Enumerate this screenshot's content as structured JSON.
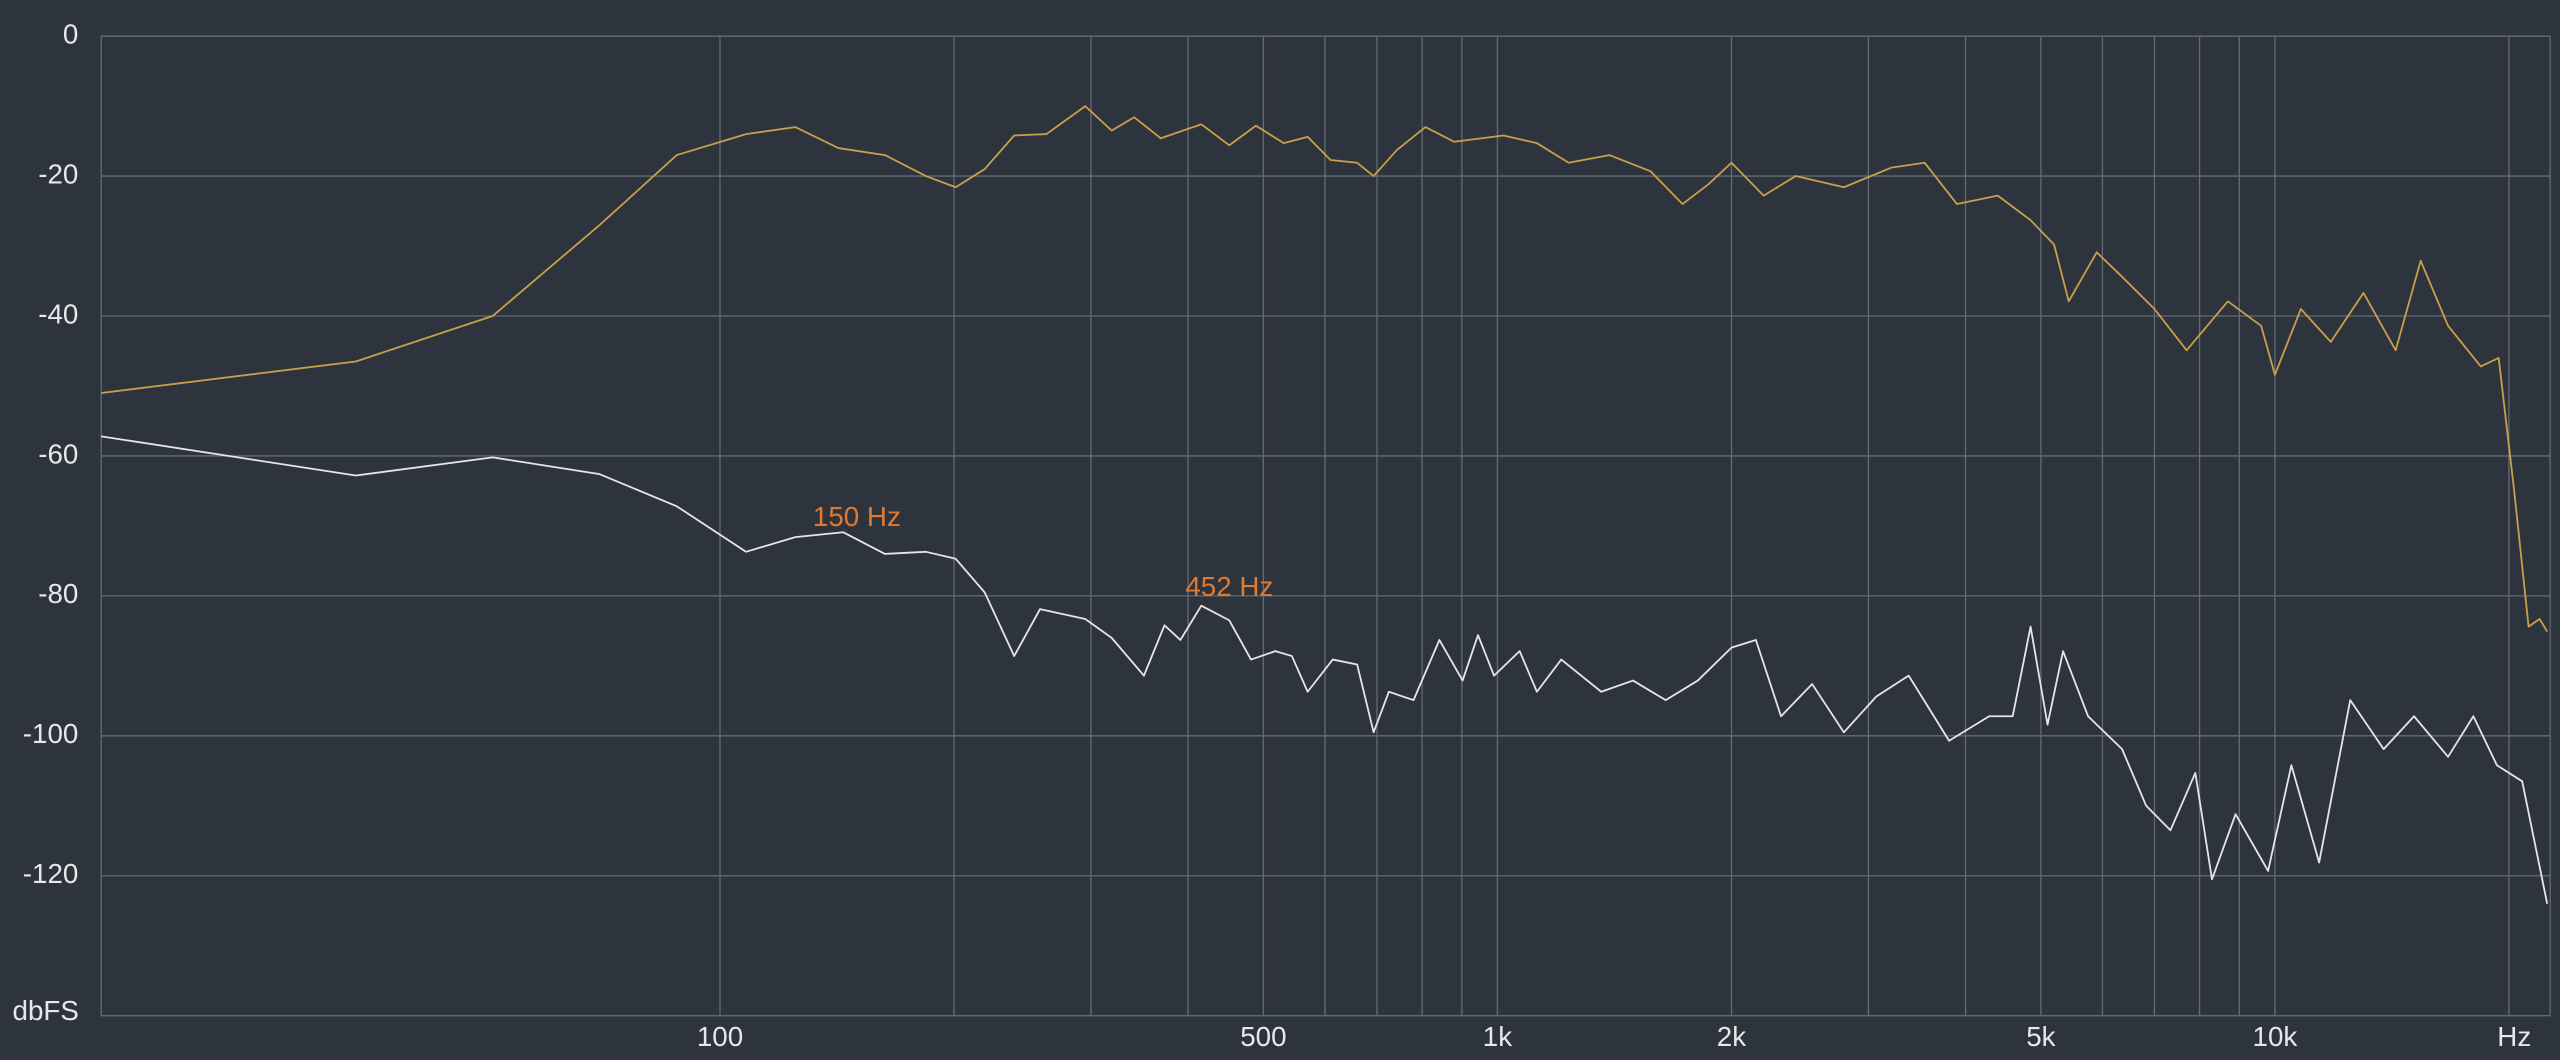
{
  "chart_data": {
    "type": "line",
    "log_x": true,
    "grid": true,
    "x_unit_label": "Hz",
    "y_unit_label": "dbFS",
    "xlim": [
      16,
      22600
    ],
    "ylim": [
      -140,
      0
    ],
    "xticks": [
      100,
      500,
      {
        "value": 1000,
        "label": "1k"
      },
      {
        "value": 2000,
        "label": "2k"
      },
      {
        "value": 5000,
        "label": "5k"
      },
      {
        "value": 10000,
        "label": "10k"
      }
    ],
    "xminor": [
      200,
      300,
      400,
      600,
      700,
      800,
      900,
      3000,
      4000,
      6000,
      7000,
      8000,
      9000,
      20000
    ],
    "yticks": [
      0,
      -20,
      -40,
      -60,
      -80,
      -100,
      -120
    ],
    "series": [
      {
        "color": "#c9a04a",
        "x": [
          16,
          34,
          51,
          70,
          88,
          108,
          125,
          142,
          163,
          184,
          201,
          219,
          239,
          263,
          295,
          319,
          341,
          369,
          416,
          452,
          489,
          531,
          570,
          610,
          660,
          693,
          742,
          808,
          880,
          1018,
          1124,
          1235,
          1393,
          1573,
          1730,
          1867,
          2000,
          2200,
          2419,
          2790,
          3210,
          3544,
          3900,
          4400,
          4850,
          5200,
          5430,
          5900,
          6360,
          7000,
          7700,
          8700,
          9600,
          10000,
          10800,
          11800,
          13000,
          14300,
          15400,
          16700,
          18400,
          19400,
          20300,
          21200,
          21900,
          22400
        ],
        "values": [
          -51,
          -46.5,
          -40,
          -27,
          -17,
          -14,
          -13,
          -16,
          -17,
          -20,
          -21.6,
          -19,
          -14.2,
          -14,
          -10,
          -13.5,
          -11.6,
          -14.6,
          -12.6,
          -15.6,
          -12.8,
          -15.3,
          -14.4,
          -17.7,
          -18.1,
          -20,
          -16.3,
          -13,
          -15.1,
          -14.2,
          -15.3,
          -18.1,
          -17,
          -19.3,
          -24,
          -21.2,
          -18.1,
          -22.8,
          -20,
          -21.6,
          -18.8,
          -18.1,
          -24,
          -22.8,
          -26.3,
          -29.8,
          -37.9,
          -30.9,
          -34.4,
          -39,
          -44.9,
          -37.9,
          -41.4,
          -48.4,
          -39,
          -43.7,
          -36.7,
          -44.9,
          -32.1,
          -41.4,
          -47.2,
          -46,
          -64.7,
          -84.4,
          -83.3,
          -85.1
        ]
      },
      {
        "color": "#e6e6e6",
        "x": [
          16,
          34,
          51,
          70,
          88,
          108,
          125,
          144,
          163,
          184,
          201,
          219,
          239,
          258,
          295,
          319,
          351,
          373,
          391,
          416,
          452,
          482,
          518,
          544,
          570,
          614,
          660,
          693,
          725,
          780,
          842,
          902,
          944,
          990,
          1068,
          1124,
          1208,
          1360,
          1494,
          1646,
          1810,
          2000,
          2150,
          2316,
          2540,
          2790,
          3070,
          3380,
          3810,
          4290,
          4600,
          4850,
          5100,
          5340,
          5750,
          6360,
          6830,
          7340,
          7900,
          8300,
          8900,
          9800,
          10500,
          11400,
          12500,
          13800,
          15100,
          16700,
          18000,
          19300,
          20800,
          22400
        ],
        "values": [
          -57.2,
          -62.8,
          -60.2,
          -62.6,
          -67.2,
          -73.7,
          -71.6,
          -70.9,
          -74,
          -73.7,
          -74.7,
          -79.5,
          -88.6,
          -81.9,
          -83.3,
          -86,
          -91.4,
          -84.2,
          -86.3,
          -81.4,
          -83.5,
          -89.1,
          -87.9,
          -88.6,
          -93.7,
          -89.1,
          -89.8,
          -99.5,
          -93.7,
          -94.9,
          -86.3,
          -92.1,
          -85.6,
          -91.4,
          -87.9,
          -93.7,
          -89.1,
          -93.7,
          -92.1,
          -94.9,
          -92.1,
          -87.4,
          -86.3,
          -97.2,
          -92.6,
          -99.5,
          -94.4,
          -91.4,
          -100.7,
          -97.2,
          -97.2,
          -84.4,
          -98.4,
          -87.9,
          -97.2,
          -101.9,
          -110,
          -113.5,
          -105.3,
          -120.5,
          -111.2,
          -119.3,
          -104.2,
          -118.1,
          -94.9,
          -101.9,
          -97.2,
          -103,
          -97.2,
          -104.2,
          -106.5,
          -124
        ]
      }
    ],
    "annotations": [
      {
        "text": "150 Hz",
        "x": 150,
        "y": -69
      },
      {
        "text": "452 Hz",
        "x": 452,
        "y": -79
      }
    ]
  }
}
